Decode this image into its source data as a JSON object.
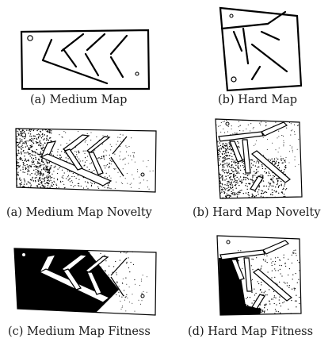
{
  "figure": {
    "panels": [
      {
        "caption": "(a) Medium Map"
      },
      {
        "caption": "(b) Hard Map"
      },
      {
        "caption": "(a) Medium Map Novelty"
      },
      {
        "caption": "(b) Hard Map Novelty"
      },
      {
        "caption": "(c) Medium Map Fitness"
      },
      {
        "caption": "(d) Hard Map Fitness"
      }
    ]
  }
}
